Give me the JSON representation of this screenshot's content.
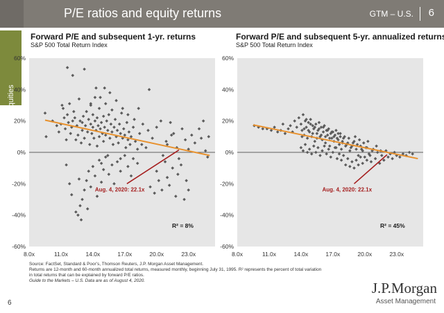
{
  "header": {
    "title": "P/E ratios and equity returns",
    "market": "GTM – U.S.",
    "separator": "|",
    "page": "6",
    "bar_color": "#7f7b75"
  },
  "side_tab": {
    "label": "Equities",
    "color": "#7d8a3c"
  },
  "chart_data": [
    {
      "type": "scatter",
      "title": "Forward P/E and subsequent 1-yr. returns",
      "subtitle": "S&P 500 Total Return Index",
      "xlabel": "",
      "ylabel": "",
      "xlim": [
        8,
        25.5
      ],
      "ylim": [
        -60,
        60
      ],
      "x_ticks": [
        "8.0x",
        "11.0x",
        "14.0x",
        "17.0x",
        "20.0x",
        "23.0x"
      ],
      "x_tick_values": [
        8,
        11,
        14,
        17,
        20,
        23
      ],
      "y_ticks": [
        "60%",
        "40%",
        "20%",
        "0%",
        "-20%",
        "-40%",
        "-60%"
      ],
      "y_tick_values": [
        60,
        40,
        20,
        0,
        -20,
        -40,
        -60
      ],
      "grid": false,
      "point_color": "#5c5c5c",
      "trendline": {
        "x": [
          9.5,
          25
        ],
        "y": [
          20.5,
          -2
        ],
        "color": "#e8912d"
      },
      "r_squared": "R² =  8%",
      "annotation": {
        "text": "Aug. 4, 2020: 22.1x",
        "point": [
          17.2,
          -20
        ],
        "line_to": [
          22.1,
          1.5
        ],
        "color": "#a51f1f"
      },
      "points": [
        [
          9.5,
          25
        ],
        [
          9.6,
          10
        ],
        [
          10.2,
          20
        ],
        [
          10.6,
          17
        ],
        [
          10.8,
          13
        ],
        [
          11.0,
          18
        ],
        [
          11.1,
          30
        ],
        [
          11.2,
          28
        ],
        [
          11.3,
          22
        ],
        [
          11.4,
          15
        ],
        [
          11.5,
          8
        ],
        [
          11.6,
          24
        ],
        [
          11.7,
          19
        ],
        [
          11.8,
          31
        ],
        [
          11.9,
          12
        ],
        [
          12.0,
          16
        ],
        [
          12.1,
          20
        ],
        [
          12.2,
          26
        ],
        [
          12.3,
          22
        ],
        [
          12.4,
          8
        ],
        [
          12.5,
          17
        ],
        [
          12.6,
          11
        ],
        [
          12.7,
          34
        ],
        [
          12.7,
          -17
        ],
        [
          12.8,
          20
        ],
        [
          12.9,
          6
        ],
        [
          13.0,
          14
        ],
        [
          13.0,
          19
        ],
        [
          13.1,
          23
        ],
        [
          13.2,
          9
        ],
        [
          13.3,
          17
        ],
        [
          13.4,
          26
        ],
        [
          13.5,
          13
        ],
        [
          13.6,
          21
        ],
        [
          13.7,
          5
        ],
        [
          13.8,
          18
        ],
        [
          13.8,
          30
        ],
        [
          13.9,
          12
        ],
        [
          14.0,
          24
        ],
        [
          14.0,
          16
        ],
        [
          14.1,
          9
        ],
        [
          14.2,
          20
        ],
        [
          14.2,
          35
        ],
        [
          14.3,
          14
        ],
        [
          14.4,
          4
        ],
        [
          14.4,
          22
        ],
        [
          14.5,
          17
        ],
        [
          14.6,
          10
        ],
        [
          14.6,
          28
        ],
        [
          14.7,
          15
        ],
        [
          14.8,
          19
        ],
        [
          14.8,
          -7
        ],
        [
          14.9,
          12
        ],
        [
          15.0,
          23
        ],
        [
          15.0,
          7
        ],
        [
          15.1,
          16
        ],
        [
          15.2,
          31
        ],
        [
          15.2,
          11
        ],
        [
          15.3,
          20
        ],
        [
          15.4,
          14
        ],
        [
          15.4,
          -2
        ],
        [
          15.5,
          24
        ],
        [
          15.6,
          9
        ],
        [
          15.7,
          18
        ],
        [
          15.8,
          13
        ],
        [
          15.8,
          27
        ],
        [
          15.9,
          5
        ],
        [
          16.0,
          16
        ],
        [
          16.1,
          21
        ],
        [
          16.2,
          10
        ],
        [
          16.3,
          14
        ],
        [
          16.4,
          6
        ],
        [
          16.5,
          18
        ],
        [
          16.6,
          12
        ],
        [
          16.6,
          -4
        ],
        [
          16.7,
          25
        ],
        [
          16.8,
          9
        ],
        [
          16.9,
          15
        ],
        [
          17.0,
          11
        ],
        [
          17.1,
          3
        ],
        [
          17.2,
          19
        ],
        [
          17.3,
          8
        ],
        [
          17.4,
          13
        ],
        [
          17.5,
          5
        ],
        [
          17.6,
          10
        ],
        [
          17.8,
          16
        ],
        [
          18.0,
          7
        ],
        [
          18.2,
          2
        ],
        [
          18.4,
          12
        ],
        [
          18.6,
          5
        ],
        [
          11.5,
          -8
        ],
        [
          11.8,
          -20
        ],
        [
          12.0,
          -27
        ],
        [
          12.4,
          -38
        ],
        [
          12.6,
          -40
        ],
        [
          12.8,
          -34
        ],
        [
          12.9,
          -43
        ],
        [
          13.0,
          -30
        ],
        [
          13.2,
          -24
        ],
        [
          13.4,
          -18
        ],
        [
          13.5,
          -36
        ],
        [
          13.6,
          -12
        ],
        [
          13.8,
          -22
        ],
        [
          14.0,
          -9
        ],
        [
          14.2,
          -15
        ],
        [
          14.4,
          -28
        ],
        [
          14.6,
          -5
        ],
        [
          14.8,
          -19
        ],
        [
          15.0,
          -11
        ],
        [
          15.2,
          -3
        ],
        [
          15.5,
          -14
        ],
        [
          15.8,
          -8
        ],
        [
          16.0,
          -20
        ],
        [
          16.3,
          -6
        ],
        [
          16.6,
          -12
        ],
        [
          17.0,
          -2
        ],
        [
          17.3,
          -9
        ],
        [
          17.6,
          -15
        ],
        [
          17.8,
          -4
        ],
        [
          18.2,
          -7
        ],
        [
          19.0,
          3
        ],
        [
          19.4,
          -22
        ],
        [
          19.8,
          -26
        ],
        [
          20.0,
          -12
        ],
        [
          20.2,
          -18
        ],
        [
          20.5,
          -24
        ],
        [
          20.8,
          -6
        ],
        [
          21.0,
          -16
        ],
        [
          21.2,
          -21
        ],
        [
          21.5,
          -10
        ],
        [
          21.8,
          -28
        ],
        [
          22.0,
          -14
        ],
        [
          22.3,
          -8
        ],
        [
          22.6,
          -30
        ],
        [
          22.8,
          -18
        ],
        [
          23.0,
          -24
        ],
        [
          19.3,
          40
        ],
        [
          20.6,
          -2
        ],
        [
          21.0,
          5
        ],
        [
          21.3,
          19
        ],
        [
          21.6,
          12
        ],
        [
          21.9,
          3
        ],
        [
          22.1,
          -4
        ],
        [
          22.4,
          15
        ],
        [
          22.7,
          8
        ],
        [
          23.0,
          2
        ],
        [
          23.3,
          11
        ],
        [
          23.6,
          6
        ],
        [
          24.0,
          15
        ],
        [
          24.2,
          9
        ],
        [
          24.4,
          20
        ],
        [
          24.6,
          1
        ],
        [
          24.8,
          -3
        ],
        [
          24.9,
          10
        ],
        [
          11.6,
          54
        ],
        [
          12.1,
          49
        ],
        [
          13.2,
          53
        ],
        [
          13.8,
          31
        ],
        [
          14.3,
          41
        ],
        [
          14.7,
          35
        ],
        [
          15.1,
          41
        ],
        [
          15.6,
          38
        ],
        [
          16.2,
          33
        ],
        [
          16.8,
          28
        ],
        [
          17.3,
          24
        ],
        [
          17.9,
          21
        ],
        [
          18.3,
          28
        ],
        [
          18.7,
          18
        ],
        [
          19.2,
          14
        ],
        [
          19.6,
          9
        ],
        [
          20.0,
          16
        ],
        [
          20.4,
          20
        ],
        [
          20.9,
          7
        ],
        [
          21.4,
          11
        ]
      ]
    },
    {
      "type": "scatter",
      "title": "Forward P/E and subsequent 5-yr. annualized returns",
      "subtitle": "S&P 500 Total Return Index",
      "xlabel": "",
      "ylabel": "",
      "xlim": [
        8,
        25.5
      ],
      "ylim": [
        -60,
        60
      ],
      "x_ticks": [
        "8.0x",
        "11.0x",
        "14.0x",
        "17.0x",
        "20.0x",
        "23.0x"
      ],
      "x_tick_values": [
        8,
        11,
        14,
        17,
        20,
        23
      ],
      "y_ticks": [
        "60%",
        "40%",
        "20%",
        "0%",
        "-20%",
        "-40%",
        "-60%"
      ],
      "y_tick_values": [
        60,
        40,
        20,
        0,
        -20,
        -40,
        -60
      ],
      "grid": false,
      "point_color": "#5c5c5c",
      "trendline": {
        "x": [
          9.5,
          25
        ],
        "y": [
          17.5,
          -4
        ],
        "color": "#e8912d"
      },
      "r_squared": "R² =  45%",
      "annotation": {
        "text": "Aug. 4, 2020: 22.1x",
        "point": [
          19.0,
          -20
        ],
        "line_to": [
          22.1,
          -1.5
        ],
        "color": "#a51f1f"
      },
      "points": [
        [
          9.6,
          17
        ],
        [
          10.0,
          16
        ],
        [
          10.4,
          15
        ],
        [
          10.8,
          15
        ],
        [
          11.2,
          14
        ],
        [
          11.5,
          16
        ],
        [
          11.8,
          13
        ],
        [
          12.1,
          14
        ],
        [
          12.3,
          18
        ],
        [
          12.5,
          12
        ],
        [
          12.8,
          15
        ],
        [
          13.0,
          17
        ],
        [
          13.2,
          13
        ],
        [
          13.4,
          20
        ],
        [
          13.6,
          16
        ],
        [
          13.8,
          22
        ],
        [
          14.0,
          18
        ],
        [
          14.1,
          14
        ],
        [
          14.2,
          24
        ],
        [
          14.3,
          11
        ],
        [
          14.4,
          20
        ],
        [
          14.5,
          16
        ],
        [
          14.6,
          9
        ],
        [
          14.7,
          19
        ],
        [
          14.8,
          13
        ],
        [
          14.9,
          21
        ],
        [
          15.0,
          10
        ],
        [
          15.1,
          17
        ],
        [
          15.2,
          15
        ],
        [
          15.3,
          7
        ],
        [
          15.4,
          18
        ],
        [
          15.5,
          12
        ],
        [
          15.6,
          14
        ],
        [
          15.7,
          19
        ],
        [
          15.8,
          10
        ],
        [
          15.9,
          16
        ],
        [
          16.0,
          8
        ],
        [
          16.1,
          13
        ],
        [
          16.2,
          17
        ],
        [
          16.3,
          6
        ],
        [
          16.4,
          14
        ],
        [
          16.5,
          11
        ],
        [
          16.6,
          15
        ],
        [
          16.7,
          4
        ],
        [
          16.8,
          12
        ],
        [
          16.9,
          9
        ],
        [
          17.0,
          13
        ],
        [
          17.1,
          7
        ],
        [
          17.2,
          11
        ],
        [
          17.3,
          3
        ],
        [
          17.4,
          9
        ],
        [
          17.5,
          12
        ],
        [
          17.6,
          5
        ],
        [
          17.7,
          10
        ],
        [
          17.8,
          2
        ],
        [
          17.9,
          7
        ],
        [
          18.0,
          9
        ],
        [
          18.2,
          4
        ],
        [
          18.4,
          6
        ],
        [
          18.6,
          1
        ],
        [
          18.8,
          4
        ],
        [
          19.0,
          7
        ],
        [
          19.2,
          2
        ],
        [
          19.4,
          -2
        ],
        [
          19.6,
          4
        ],
        [
          19.8,
          1
        ],
        [
          20.0,
          -3
        ],
        [
          20.2,
          3
        ],
        [
          20.4,
          -1
        ],
        [
          20.6,
          -6
        ],
        [
          20.8,
          2
        ],
        [
          21.0,
          -4
        ],
        [
          21.2,
          0
        ],
        [
          21.4,
          -7
        ],
        [
          21.6,
          -2
        ],
        [
          21.8,
          -5
        ],
        [
          22.0,
          1
        ],
        [
          22.2,
          -3
        ],
        [
          22.4,
          -1
        ],
        [
          22.6,
          -4
        ],
        [
          22.8,
          0
        ],
        [
          23.0,
          -2
        ],
        [
          23.3,
          -3
        ],
        [
          23.6,
          -1
        ],
        [
          23.9,
          -2
        ],
        [
          24.2,
          0
        ],
        [
          24.5,
          -1
        ],
        [
          14.0,
          3
        ],
        [
          14.2,
          1
        ],
        [
          14.4,
          5
        ],
        [
          14.6,
          0
        ],
        [
          14.8,
          2
        ],
        [
          15.0,
          -1
        ],
        [
          15.2,
          4
        ],
        [
          15.4,
          0
        ],
        [
          15.6,
          3
        ],
        [
          15.8,
          -2
        ],
        [
          16.0,
          1
        ],
        [
          16.2,
          4
        ],
        [
          16.4,
          -1
        ],
        [
          16.6,
          2
        ],
        [
          16.8,
          -3
        ],
        [
          17.0,
          0
        ],
        [
          17.2,
          3
        ],
        [
          17.4,
          -4
        ],
        [
          17.6,
          -1
        ],
        [
          17.8,
          -5
        ],
        [
          18.0,
          -2
        ],
        [
          18.2,
          -8
        ],
        [
          18.4,
          -4
        ],
        [
          18.6,
          -9
        ],
        [
          18.8,
          -6
        ],
        [
          19.0,
          -10
        ],
        [
          19.2,
          -5
        ],
        [
          19.4,
          -8
        ],
        [
          19.6,
          -3
        ],
        [
          19.8,
          -7
        ],
        [
          20.2,
          -5
        ],
        [
          20.5,
          -2
        ],
        [
          14.1,
          10
        ],
        [
          14.3,
          15
        ],
        [
          14.5,
          21
        ],
        [
          14.7,
          14
        ],
        [
          14.9,
          18
        ],
        [
          15.1,
          12
        ],
        [
          15.3,
          16
        ],
        [
          15.5,
          9
        ],
        [
          15.7,
          15
        ],
        [
          15.9,
          11
        ],
        [
          16.1,
          16
        ],
        [
          16.3,
          10
        ],
        [
          16.5,
          14
        ],
        [
          16.7,
          9
        ],
        [
          16.9,
          13
        ],
        [
          17.1,
          10
        ],
        [
          17.3,
          14
        ],
        [
          17.5,
          8
        ],
        [
          17.7,
          12
        ],
        [
          17.9,
          6
        ],
        [
          18.1,
          10
        ],
        [
          18.3,
          5
        ],
        [
          18.5,
          9
        ],
        [
          18.7,
          3
        ],
        [
          18.9,
          6
        ],
        [
          19.1,
          10
        ],
        [
          19.3,
          5
        ],
        [
          19.5,
          8
        ],
        [
          19.7,
          2
        ],
        [
          19.9,
          6
        ],
        [
          20.1,
          3
        ],
        [
          20.3,
          7
        ],
        [
          20.7,
          1
        ],
        [
          21.1,
          4
        ],
        [
          21.5,
          1
        ]
      ]
    }
  ],
  "footnotes": {
    "source": "Source: FactSet, Standard & Poor’s, Thomson Reuters, J.P. Morgan Asset Management.",
    "returns_line1": "Returns are 12-month and 60-month annualized total returns, measured monthly, beginning July 31, 1995. R² represents the percent of total variation",
    "returns_line2": "in total returns that can be explained by forward P/E ratios.",
    "guide": "Guide to the Markets – U.S. Data are as of August 4, 2020."
  },
  "logo": {
    "name": "J.P.Morgan",
    "subtitle": "Asset Management"
  },
  "page_number": "6"
}
